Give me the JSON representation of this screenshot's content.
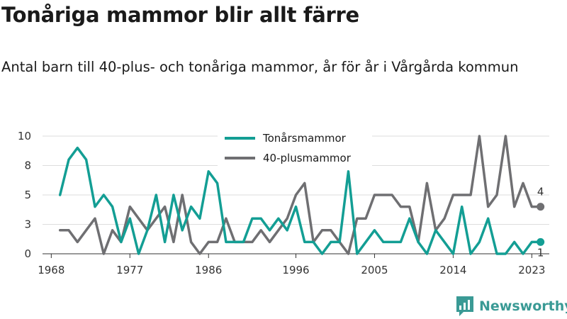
{
  "header": {
    "title": "Tonåriga mammor blir allt färre",
    "subtitle": "Antal barn till 40-plus- och tonåriga mammor, år för år i Vårgårda kommun"
  },
  "chart_data": {
    "type": "line",
    "title": "Tonåriga mammor blir allt färre",
    "subtitle": "Antal barn till 40-plus- och tonåriga mammor, år för år i Vårgårda kommun",
    "xlabel": "",
    "ylabel": "",
    "x": [
      1969,
      1970,
      1971,
      1972,
      1973,
      1974,
      1975,
      1976,
      1977,
      1978,
      1979,
      1980,
      1981,
      1982,
      1983,
      1984,
      1985,
      1986,
      1987,
      1988,
      1989,
      1990,
      1991,
      1992,
      1993,
      1994,
      1995,
      1996,
      1997,
      1998,
      1999,
      2000,
      2001,
      2002,
      2003,
      2004,
      2005,
      2006,
      2007,
      2008,
      2009,
      2010,
      2011,
      2012,
      2013,
      2014,
      2015,
      2016,
      2017,
      2018,
      2019,
      2020,
      2021,
      2022,
      2023,
      2024
    ],
    "xlim": [
      1967,
      2025
    ],
    "ylim": [
      0,
      10
    ],
    "x_ticks": [
      1968,
      1977,
      1986,
      1996,
      2005,
      2014,
      2023
    ],
    "y_ticks": [
      0,
      3,
      5,
      8,
      10
    ],
    "y_tick_positions": [
      0,
      2.5,
      5,
      7.5,
      10
    ],
    "grid": true,
    "legend_position": "top-center",
    "series": [
      {
        "name": "Tonårsmammor",
        "color": "#139e94",
        "end_label": "1",
        "values": [
          5,
          8,
          9,
          8,
          4,
          5,
          4,
          1,
          3,
          0,
          2,
          5,
          1,
          5,
          2,
          4,
          3,
          7,
          6,
          1,
          1,
          1,
          3,
          3,
          2,
          3,
          2,
          4,
          1,
          1,
          0,
          1,
          1,
          7,
          0,
          1,
          2,
          1,
          1,
          1,
          3,
          1,
          0,
          2,
          1,
          0,
          4,
          0,
          1,
          3,
          0,
          0,
          1,
          0,
          1,
          1
        ]
      },
      {
        "name": "40-plusmammor",
        "color": "#6f6f72",
        "end_label": "4",
        "values": [
          2,
          2,
          1,
          2,
          3,
          0,
          2,
          1,
          4,
          3,
          2,
          3,
          4,
          1,
          5,
          1,
          0,
          1,
          1,
          3,
          1,
          1,
          1,
          2,
          1,
          2,
          3,
          5,
          6,
          1,
          2,
          2,
          1,
          0,
          3,
          3,
          5,
          5,
          5,
          4,
          4,
          1,
          6,
          2,
          3,
          5,
          5,
          5,
          10,
          4,
          5,
          10,
          4,
          6,
          4,
          4
        ]
      }
    ]
  },
  "brand": {
    "name": "Newsworthy",
    "logo_icon": "bar-chart-logo-icon",
    "color": "#3a9a95"
  }
}
